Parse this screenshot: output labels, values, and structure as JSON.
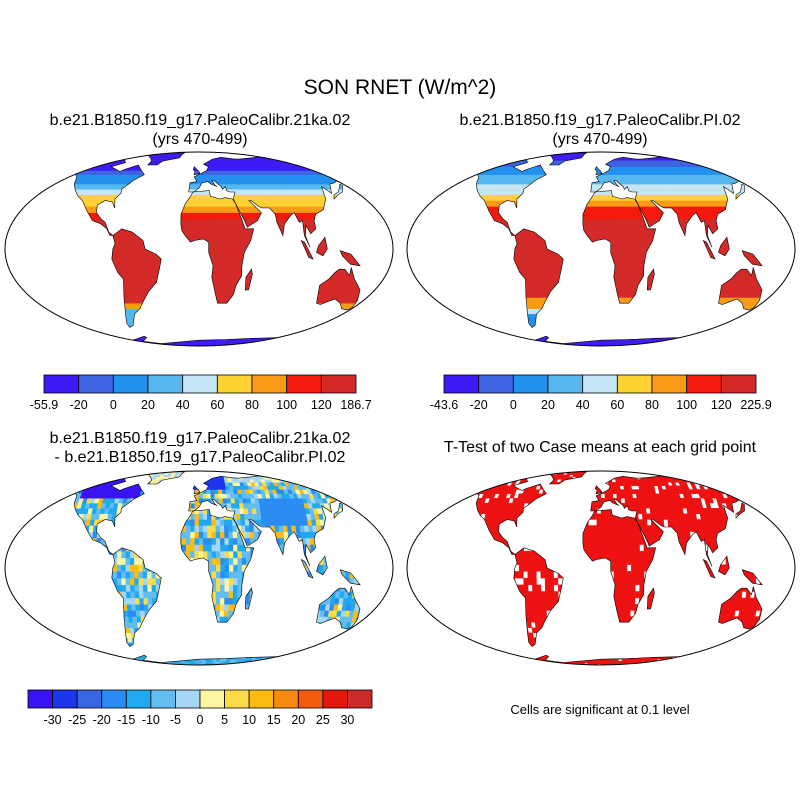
{
  "figure": {
    "title": "SON RNET (W/m^2)",
    "note": "Cells are significant at 0.1 level"
  },
  "panels": [
    {
      "id": "p1",
      "title_line1": "b.e21.B1850.f19_g17.PaleoCalibr.21ka.02",
      "title_line2": "(yrs 470-499)",
      "field": "absolute"
    },
    {
      "id": "p2",
      "title_line1": "b.e21.B1850.f19_g17.PaleoCalibr.PI.02",
      "title_line2": "(yrs 470-499)",
      "field": "absolute"
    },
    {
      "id": "p3",
      "title_line1": "b.e21.B1850.f19_g17.PaleoCalibr.21ka.02",
      "title_line2": "- b.e21.B1850.f19_g17.PaleoCalibr.PI.02",
      "field": "difference"
    },
    {
      "id": "p4",
      "title_line1": "T-Test of two Case means at each grid point",
      "title_line2": "",
      "field": "significance"
    }
  ],
  "colorbars": [
    {
      "id": "cb1",
      "labels": [
        "-55.9",
        "-20",
        "0",
        "20",
        "40",
        "60",
        "80",
        "100",
        "120",
        "186.7"
      ],
      "colors": [
        "#3f1af5",
        "#3c63e0",
        "#2390f0",
        "#55b7ee",
        "#c4e5f3",
        "#fbd232",
        "#fa9b16",
        "#f5180c",
        "#d32a28"
      ]
    },
    {
      "id": "cb2",
      "labels": [
        "-43.6",
        "-20",
        "0",
        "20",
        "40",
        "60",
        "80",
        "100",
        "120",
        "225.9"
      ],
      "colors": [
        "#3f1af5",
        "#3c63e0",
        "#2390f0",
        "#55b7ee",
        "#c4e5f3",
        "#fbd232",
        "#fa9b16",
        "#f5180c",
        "#d32a28"
      ]
    },
    {
      "id": "cb3",
      "labels": [
        "-30",
        "-25",
        "-20",
        "-15",
        "-10",
        "-5",
        "0",
        "5",
        "10",
        "15",
        "20",
        "25",
        "30"
      ],
      "colors": [
        "#3a13f2",
        "#1c36ee",
        "#3866e2",
        "#2a8cf2",
        "#21a8f0",
        "#62bdf0",
        "#a5d7f4",
        "#fcf6a2",
        "#fbdb46",
        "#fbbc12",
        "#f78a10",
        "#f45a0e",
        "#e3170c",
        "#cc2a29"
      ]
    }
  ],
  "colors": {
    "significant": "#ee1111",
    "coastline": "#000000",
    "ocean": "#ffffff"
  }
}
